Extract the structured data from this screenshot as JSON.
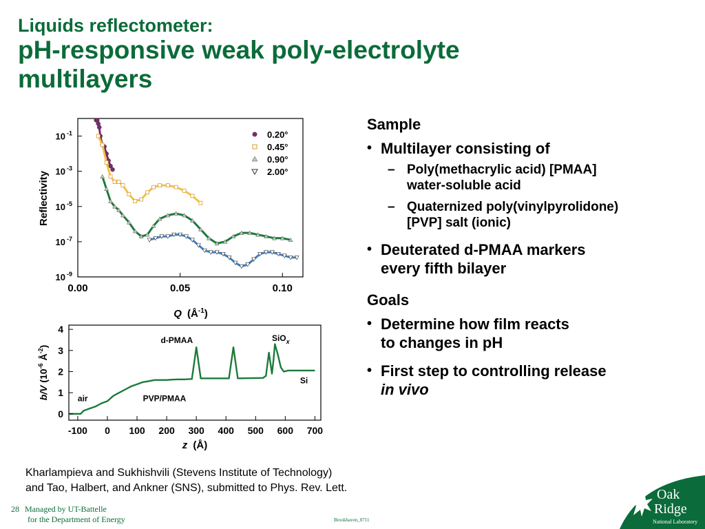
{
  "title": {
    "line1": "Liquids reflectometer:",
    "line2a": "pH-responsive weak poly-electrolyte",
    "line2b": "multilayers"
  },
  "right_panel": {
    "sample_heading": "Sample",
    "bullet1": "Multilayer consisting of",
    "sub1_line1": "Poly(methacrylic acid) [PMAA]",
    "sub1_line2": "water-soluble acid",
    "sub2_line1": "Quaternized poly(vinylpyrolidone)",
    "sub2_line2": "[PVP] salt (ionic)",
    "bullet2_line1": "Deuterated d-PMAA markers",
    "bullet2_line2": "every fifth bilayer",
    "goals_heading": "Goals",
    "bullet3_line1": "Determine how film reacts",
    "bullet3_line2": "to changes in pH",
    "bullet4_line1": "First step to controlling release",
    "bullet4_line2": "in vivo"
  },
  "citation": {
    "line1": "Kharlampieva and Sukhishvili (Stevens Institute of Technology)",
    "line2": "and Tao, Halbert, and Ankner (SNS), submitted to Phys. Rev. Lett."
  },
  "footer": {
    "page_number": "28",
    "line1": "Managed by UT-Battelle",
    "line2": "for the Department of Energy",
    "code": "Brookhaven_0711"
  },
  "logo": {
    "word1": "Oak",
    "word2": "Ridge",
    "subtitle": "National Laboratory"
  },
  "colors": {
    "title": "#0b6b3a",
    "s020": "#7b2a6e",
    "s045": "#f5c242",
    "s090": "#1a7a3a",
    "s200": "#3f7fc4"
  },
  "chart_data": [
    {
      "type": "line",
      "ylabel": "Reflectivity",
      "xlabel_prefix": "Q",
      "xlabel_unit": "(Å",
      "xlabel_exp": "-1",
      "y_scale": "log",
      "xlim": [
        0.0,
        0.11
      ],
      "ylim_exp": [
        -9,
        0
      ],
      "x_ticks": [
        "0.00",
        "0.05",
        "0.10"
      ],
      "x_tick_values": [
        0.0,
        0.05,
        0.1
      ],
      "y_ticks": [
        {
          "base": "10",
          "exp": "-1",
          "value": -1
        },
        {
          "base": "10",
          "exp": "-3",
          "value": -3
        },
        {
          "base": "10",
          "exp": "-5",
          "value": -5
        },
        {
          "base": "10",
          "exp": "-7",
          "value": -7
        },
        {
          "base": "10",
          "exp": "-9",
          "value": -9
        }
      ],
      "legend_position": "top-right",
      "series": [
        {
          "name": "0.20°",
          "marker": "circle",
          "color": "#7b2a6e",
          "x": [
            0.009,
            0.0095,
            0.01,
            0.0105,
            0.011,
            0.012,
            0.013,
            0.014,
            0.015,
            0.016,
            0.017
          ],
          "y": [
            -0.1,
            -0.1,
            -0.3,
            -0.5,
            -1.0,
            -1.5,
            -1.6,
            -2.0,
            -2.4,
            -2.7,
            -2.9
          ]
        },
        {
          "name": "0.45°",
          "marker": "square",
          "color": "#f5c242",
          "x": [
            0.01,
            0.012,
            0.014,
            0.016,
            0.018,
            0.02,
            0.022,
            0.025,
            0.028,
            0.031,
            0.034,
            0.037,
            0.04,
            0.044,
            0.048,
            0.052,
            0.056,
            0.06
          ],
          "y": [
            -1.0,
            -1.5,
            -2.5,
            -3.3,
            -3.6,
            -3.6,
            -3.8,
            -4.3,
            -4.7,
            -4.6,
            -4.2,
            -3.9,
            -3.8,
            -3.8,
            -3.9,
            -4.1,
            -4.4,
            -4.8
          ]
        },
        {
          "name": "0.90°",
          "marker": "triangle-up",
          "color": "#1a7a3a",
          "x": [
            0.012,
            0.014,
            0.016,
            0.018,
            0.02,
            0.022,
            0.025,
            0.028,
            0.031,
            0.034,
            0.037,
            0.04,
            0.044,
            0.048,
            0.052,
            0.056,
            0.06,
            0.064,
            0.068,
            0.072,
            0.076,
            0.08,
            0.084,
            0.088,
            0.092,
            0.096,
            0.1,
            0.104
          ],
          "y": [
            -3.3,
            -4.0,
            -4.7,
            -5.0,
            -5.2,
            -5.5,
            -5.9,
            -6.4,
            -6.7,
            -6.6,
            -6.1,
            -5.7,
            -5.5,
            -5.4,
            -5.5,
            -5.8,
            -6.3,
            -6.8,
            -7.1,
            -7.0,
            -6.7,
            -6.5,
            -6.5,
            -6.6,
            -6.7,
            -6.8,
            -6.8,
            -6.9
          ]
        },
        {
          "name": "2.00°",
          "marker": "triangle-down",
          "color": "#3f7fc4",
          "x": [
            0.035,
            0.038,
            0.041,
            0.044,
            0.047,
            0.05,
            0.053,
            0.056,
            0.059,
            0.062,
            0.065,
            0.068,
            0.071,
            0.074,
            0.077,
            0.08,
            0.083,
            0.086,
            0.089,
            0.092,
            0.095,
            0.098,
            0.101,
            0.104,
            0.107
          ],
          "y": [
            -6.9,
            -6.8,
            -6.7,
            -6.7,
            -6.6,
            -6.6,
            -6.7,
            -6.9,
            -7.2,
            -7.5,
            -7.6,
            -7.6,
            -7.7,
            -7.9,
            -8.2,
            -8.4,
            -8.3,
            -8.0,
            -7.7,
            -7.6,
            -7.6,
            -7.7,
            -7.8,
            -7.9,
            -7.9
          ]
        }
      ]
    },
    {
      "type": "line",
      "ylabel_prefix": "b/V",
      "ylabel_rest": " (10",
      "ylabel_exp": "-6",
      "ylabel_unit": " Å",
      "ylabel_exp2": "-2",
      "ylabel_close": ")",
      "xlabel_prefix": "z",
      "xlabel_unit": "(Å)",
      "xlim": [
        -130,
        720
      ],
      "ylim": [
        -0.3,
        4.2
      ],
      "x_ticks": [
        "-100",
        "0",
        "100",
        "200",
        "300",
        "400",
        "500",
        "600",
        "700"
      ],
      "x_tick_values": [
        -100,
        0,
        100,
        200,
        300,
        400,
        500,
        600,
        700
      ],
      "y_ticks": [
        "0",
        "1",
        "2",
        "3",
        "4"
      ],
      "y_tick_values": [
        0,
        1,
        2,
        3,
        4
      ],
      "annotations": [
        {
          "text": "air",
          "x": -100,
          "y": 0.6
        },
        {
          "text": "PVP/PMAA",
          "x": 120,
          "y": 0.6
        },
        {
          "text": "d-PMAA",
          "x": 180,
          "y": 3.35
        },
        {
          "text": "SiO",
          "sub": "x",
          "x": 555,
          "y": 3.45
        },
        {
          "text": "Si",
          "x": 650,
          "y": 1.45
        }
      ],
      "series": [
        {
          "x": [
            -130,
            -90,
            -80,
            -60,
            -40,
            -20,
            0,
            20,
            40,
            60,
            80,
            100,
            120,
            140,
            160,
            180,
            200,
            220,
            240,
            260,
            285,
            300,
            315,
            330,
            410,
            425,
            440,
            525,
            535,
            545,
            555,
            560,
            565,
            575,
            585,
            595,
            610,
            700
          ],
          "y": [
            0.0,
            0.0,
            0.15,
            0.25,
            0.35,
            0.5,
            0.6,
            0.85,
            1.0,
            1.15,
            1.3,
            1.4,
            1.5,
            1.55,
            1.6,
            1.6,
            1.6,
            1.62,
            1.63,
            1.63,
            1.65,
            3.15,
            1.68,
            1.68,
            1.68,
            3.15,
            1.68,
            1.7,
            1.8,
            2.9,
            1.9,
            2.5,
            3.3,
            2.8,
            2.2,
            2.0,
            2.05,
            2.05
          ]
        }
      ]
    }
  ]
}
